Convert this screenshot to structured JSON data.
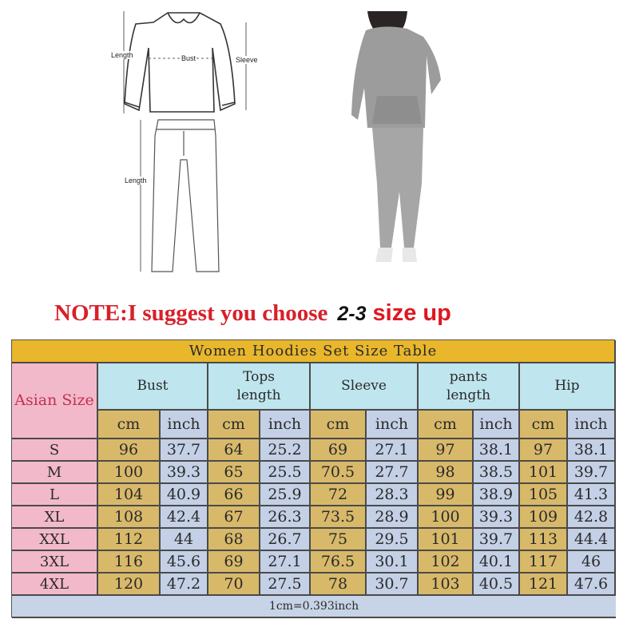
{
  "diagram": {
    "top_length_label": "Length",
    "bust_label": "Bust",
    "sleeve_label": "Sleeve",
    "pants_length_label": "Length"
  },
  "note": {
    "part1": "NOTE:I suggest you choose",
    "part2": "2-3",
    "part3": "size up"
  },
  "table": {
    "title": "Women Hoodies Set Size Table",
    "size_header": "Asian Size",
    "groups": [
      "Bust",
      "Tops length",
      "Sleeve",
      "pants length",
      "Hip"
    ],
    "units": [
      "cm",
      "inch"
    ],
    "rows": [
      {
        "size": "S",
        "values": [
          "96",
          "37.7",
          "64",
          "25.2",
          "69",
          "27.1",
          "97",
          "38.1",
          "97",
          "38.1"
        ]
      },
      {
        "size": "M",
        "values": [
          "100",
          "39.3",
          "65",
          "25.5",
          "70.5",
          "27.7",
          "98",
          "38.5",
          "101",
          "39.7"
        ]
      },
      {
        "size": "L",
        "values": [
          "104",
          "40.9",
          "66",
          "25.9",
          "72",
          "28.3",
          "99",
          "38.9",
          "105",
          "41.3"
        ]
      },
      {
        "size": "XL",
        "values": [
          "108",
          "42.4",
          "67",
          "26.3",
          "73.5",
          "28.9",
          "100",
          "39.3",
          "109",
          "42.8"
        ]
      },
      {
        "size": "XXL",
        "values": [
          "112",
          "44",
          "68",
          "26.7",
          "75",
          "29.5",
          "101",
          "39.7",
          "113",
          "44.4"
        ]
      },
      {
        "size": "3XL",
        "values": [
          "116",
          "45.6",
          "69",
          "27.1",
          "76.5",
          "30.1",
          "102",
          "40.1",
          "117",
          "46"
        ]
      },
      {
        "size": "4XL",
        "values": [
          "120",
          "47.2",
          "70",
          "27.5",
          "78",
          "30.7",
          "103",
          "40.5",
          "121",
          "47.6"
        ]
      }
    ],
    "footer": "1cm=0.393inch"
  },
  "colors": {
    "title_bg": "#e9b72b",
    "header_bg": "#bfe5ee",
    "size_bg": "#f2b9cb",
    "cm_bg": "#d8b96a",
    "inch_bg": "#c4d0e6",
    "note_red": "#d8202a"
  }
}
